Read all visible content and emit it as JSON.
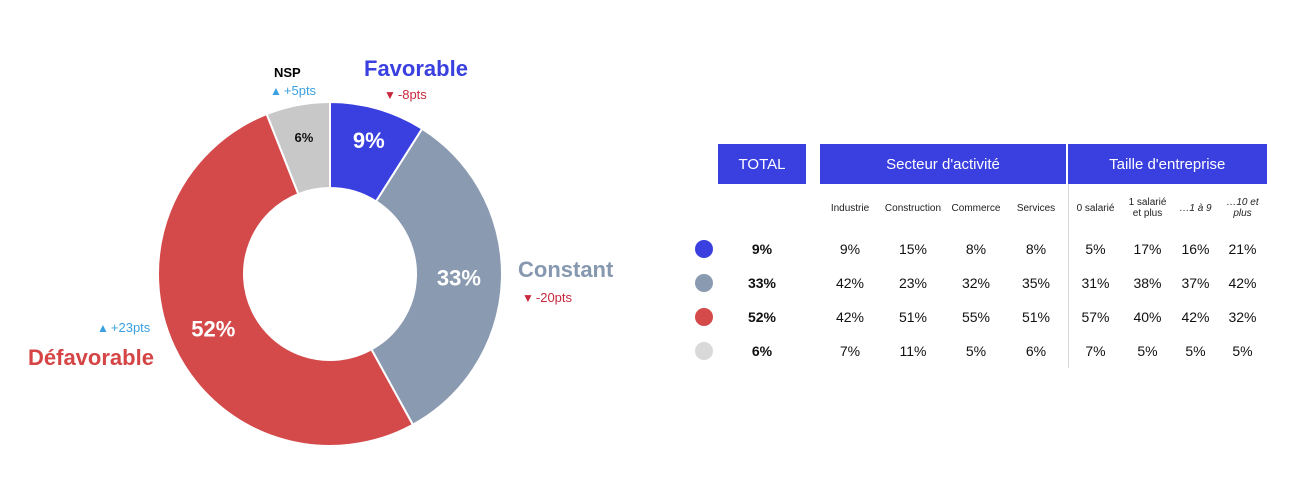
{
  "chart_data": {
    "type": "pie",
    "slices": [
      {
        "name": "Favorable",
        "value": 9,
        "label": "9%",
        "color": "#3a3fe0",
        "change": "-8pts",
        "direction": "down"
      },
      {
        "name": "Constant",
        "value": 33,
        "label": "33%",
        "color": "#8a9ab1",
        "change": "-20pts",
        "direction": "down"
      },
      {
        "name": "Défavorable",
        "value": 52,
        "label": "52%",
        "color": "#d44a4a",
        "change": "+23pts",
        "direction": "up"
      },
      {
        "name": "NSP",
        "value": 6,
        "label": "6%",
        "color": "#c8c8c8",
        "change": "+5pts",
        "direction": "up"
      }
    ]
  },
  "table": {
    "header_total": "TOTAL",
    "group_secteur": "Secteur d'activité",
    "group_taille": "Taille d'entreprise",
    "secteur_cols": [
      "Industrie",
      "Construction",
      "Commerce",
      "Services"
    ],
    "taille_cols": [
      "0 salarié",
      "1 salarié et plus",
      "…1 à 9",
      "…10 et plus"
    ],
    "rows": [
      {
        "color": "#3a3fe0",
        "total": "9%",
        "secteur": [
          "9%",
          "15%",
          "8%",
          "8%"
        ],
        "taille": [
          "5%",
          "17%",
          "16%",
          "21%"
        ]
      },
      {
        "color": "#8a9ab1",
        "total": "33%",
        "secteur": [
          "42%",
          "23%",
          "32%",
          "35%"
        ],
        "taille": [
          "31%",
          "38%",
          "37%",
          "42%"
        ]
      },
      {
        "color": "#d44a4a",
        "total": "52%",
        "secteur": [
          "42%",
          "51%",
          "55%",
          "51%"
        ],
        "taille": [
          "57%",
          "40%",
          "42%",
          "32%"
        ]
      },
      {
        "color": "#d9d9d9",
        "total": "6%",
        "secteur": [
          "7%",
          "11%",
          "5%",
          "6%"
        ],
        "taille": [
          "7%",
          "5%",
          "5%",
          "5%"
        ]
      }
    ]
  }
}
